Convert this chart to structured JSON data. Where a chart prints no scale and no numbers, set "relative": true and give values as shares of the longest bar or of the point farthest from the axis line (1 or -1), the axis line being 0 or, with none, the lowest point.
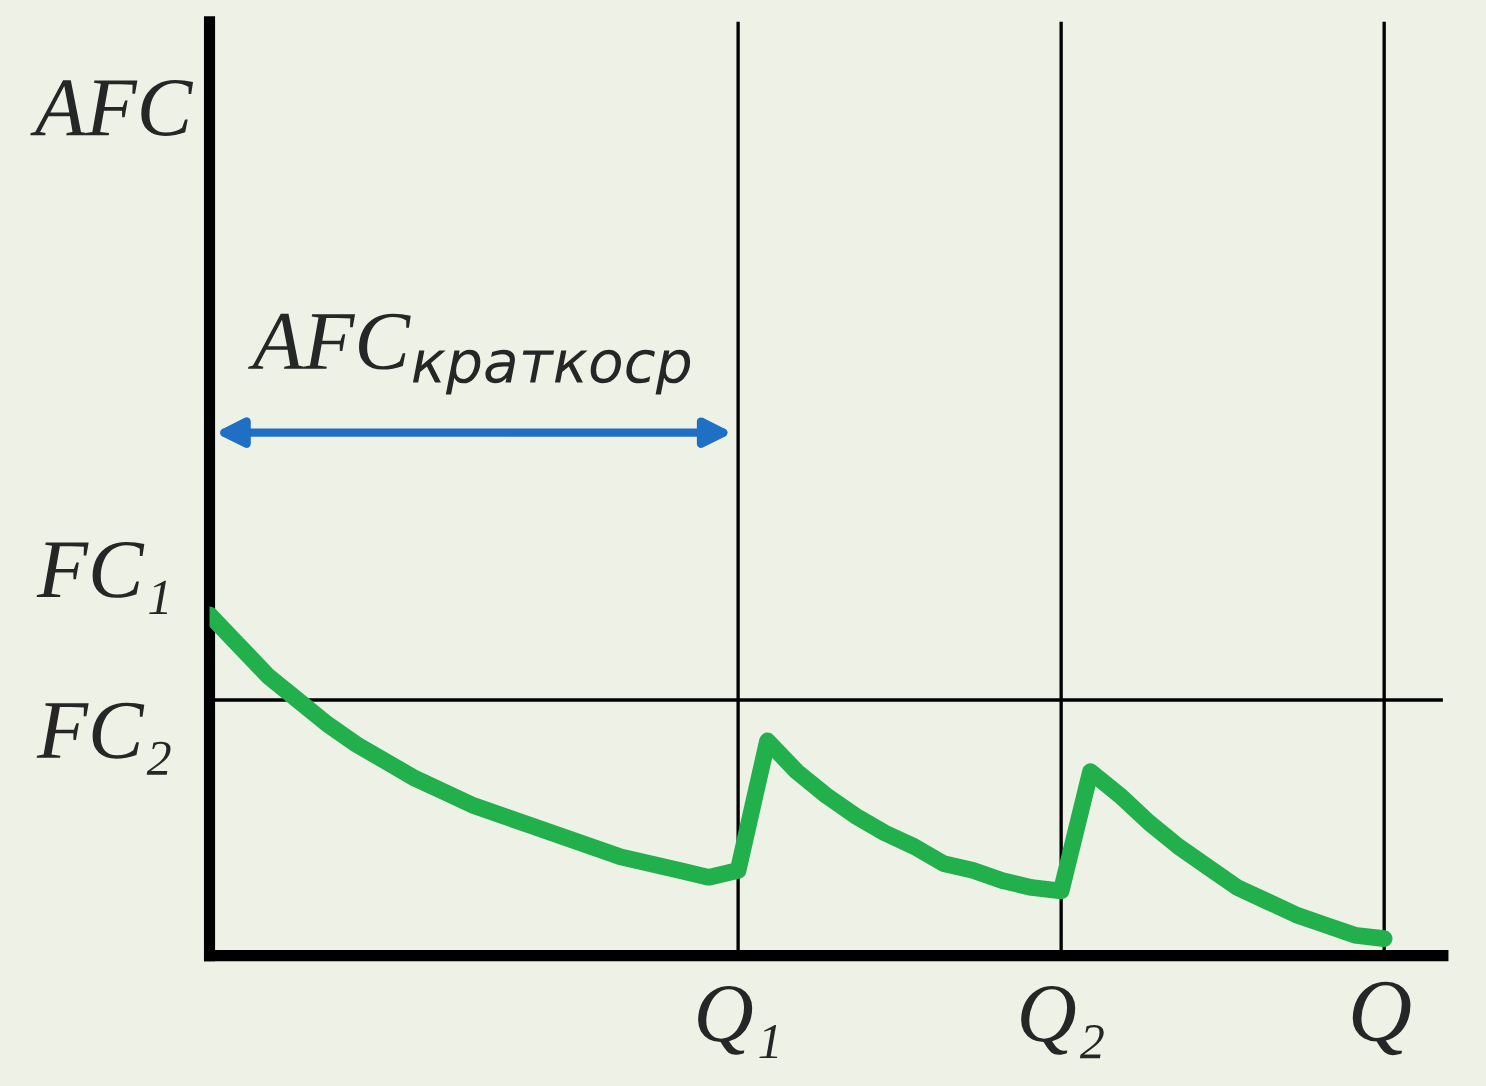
{
  "chart_data": {
    "type": "line",
    "relative": true,
    "xlabel": "Q",
    "annotations": [
      "AFC$_{краткоср}$",
      "FC₁",
      "AFC"
    ],
    "categories": [
      null,
      null,
      null,
      null,
      null,
      null,
      null,
      null,
      null,
      null,
      null,
      null,
      null,
      null,
      null,
      null,
      null,
      null,
      "Q₁",
      null,
      null,
      null,
      null,
      null,
      null,
      null,
      null,
      null,
      null,
      "Q₂",
      null,
      null,
      null,
      null,
      null,
      null,
      null,
      null,
      null,
      null,
      null
    ],
    "series": [
      {
        "color": "#21b04b",
        "values": [
          1.0,
          0.91,
          0.82,
          0.75,
          0.68,
          0.62,
          0.57,
          0.52,
          0.48,
          0.44,
          0.41,
          0.38,
          0.35,
          0.32,
          0.29,
          0.27,
          0.25,
          0.23,
          0.25,
          0.63,
          0.54,
          0.47,
          0.41,
          0.36,
          0.32,
          0.27,
          0.25,
          0.22,
          0.2,
          0.19,
          0.54,
          0.47,
          0.39,
          0.32,
          0.26,
          0.2,
          0.16,
          0.12,
          0.09,
          0.06,
          0.05
        ]
      }
    ],
    "ref_lines": [
      {
        "axis": "y",
        "value": 0.75,
        "label": "FC₂",
        "color": "#000000"
      }
    ],
    "grid": "x",
    "legend": false,
    "marker": "none",
    "line_style": "solid"
  }
}
